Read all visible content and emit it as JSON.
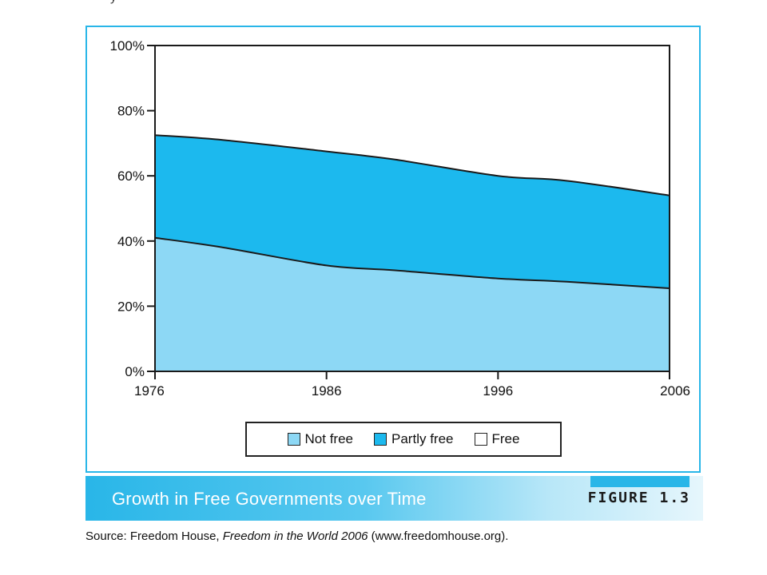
{
  "page": {
    "top_fragment": "y"
  },
  "chart_data": {
    "type": "area",
    "stacked": true,
    "x": [
      1976,
      1980,
      1986,
      1990,
      1996,
      2000,
      2006
    ],
    "xticks": [
      "1976",
      "1986",
      "1996",
      "2006"
    ],
    "yticks": [
      "0%",
      "20%",
      "40%",
      "60%",
      "80%",
      "100%"
    ],
    "ylim": [
      0,
      100
    ],
    "series": [
      {
        "name": "Not free",
        "values": [
          41,
          38,
          32.5,
          31,
          28.5,
          27.5,
          25.5
        ],
        "color": "#8dd8f5"
      },
      {
        "name": "Partly free",
        "values": [
          31.5,
          33,
          35,
          34,
          31.5,
          31,
          28.5
        ],
        "color": "#1cb9ee"
      },
      {
        "name": "Free",
        "values": [
          27.5,
          29,
          32.5,
          35,
          40,
          41.5,
          46
        ],
        "color": "#ffffff"
      }
    ],
    "grid": false,
    "legend_position": "bottom"
  },
  "legend": {
    "items": [
      {
        "label": "Not free",
        "color": "#8dd8f5"
      },
      {
        "label": "Partly free",
        "color": "#1cb9ee"
      },
      {
        "label": "Free",
        "color": "#ffffff"
      }
    ]
  },
  "caption": {
    "title": "Growth in Free Governments over Time",
    "figure_label": "FIGURE 1.3"
  },
  "source": {
    "prefix": "Source: Freedom House, ",
    "publication": "Freedom in the World 2006",
    "suffix": " (www.freedomhouse.org)."
  },
  "colors": {
    "frame": "#29b6e8",
    "not_free": "#8dd8f5",
    "partly_free": "#1cb9ee"
  }
}
